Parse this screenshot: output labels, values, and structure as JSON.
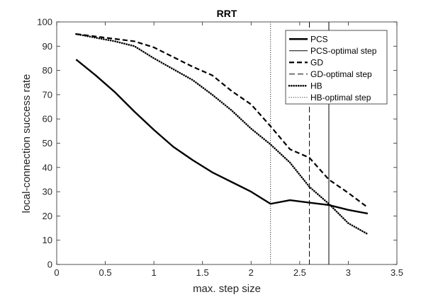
{
  "chart_data": {
    "type": "line",
    "title": "RRT",
    "xlabel": "max. step size",
    "ylabel": "local-connection success rate",
    "xlim": [
      0,
      3.5
    ],
    "ylim": [
      0,
      100
    ],
    "xticks": [
      0,
      0.5,
      1,
      1.5,
      2,
      2.5,
      3,
      3.5
    ],
    "yticks": [
      0,
      10,
      20,
      30,
      40,
      50,
      60,
      70,
      80,
      90,
      100
    ],
    "xtick_labels": [
      "0",
      "0.5",
      "1",
      "1.5",
      "2",
      "2.5",
      "3",
      "3.5"
    ],
    "ytick_labels": [
      "0",
      "10",
      "20",
      "30",
      "40",
      "50",
      "60",
      "70",
      "80",
      "90",
      "100"
    ],
    "grid": false,
    "legend_position": "top-right",
    "series": [
      {
        "name": "PCS",
        "style": "solid-thick",
        "x": [
          0.2,
          0.4,
          0.6,
          0.8,
          1.0,
          1.2,
          1.4,
          1.6,
          1.8,
          2.0,
          2.2,
          2.4,
          2.6,
          2.8,
          3.0,
          3.2
        ],
        "y": [
          84.5,
          78,
          71,
          63,
          55.5,
          48.5,
          43,
          38,
          34,
          30,
          25,
          26.5,
          25.5,
          24.5,
          22.5,
          21
        ]
      },
      {
        "name": "GD",
        "style": "dashed",
        "x": [
          0.2,
          0.4,
          0.6,
          0.8,
          1.0,
          1.2,
          1.4,
          1.6,
          1.8,
          2.0,
          2.2,
          2.4,
          2.6,
          2.8,
          3.0,
          3.2
        ],
        "y": [
          95,
          94,
          93,
          92,
          89.5,
          85.5,
          81.5,
          78,
          71.5,
          66,
          57,
          47.5,
          44,
          35,
          29.5,
          23.5
        ]
      },
      {
        "name": "HB",
        "style": "dotted",
        "x": [
          0.2,
          0.4,
          0.6,
          0.8,
          1.0,
          1.2,
          1.4,
          1.6,
          1.8,
          2.0,
          2.2,
          2.4,
          2.6,
          2.8,
          3.0,
          3.2
        ],
        "y": [
          95,
          93.5,
          92,
          90,
          85,
          80.5,
          76,
          70,
          63.5,
          56,
          49.5,
          42,
          32,
          25,
          17,
          12.5
        ]
      }
    ],
    "reference_lines": [
      {
        "name": "PCS-optimal step",
        "x": 2.8,
        "style": "solid-thin"
      },
      {
        "name": "GD-optimal step",
        "x": 2.6,
        "style": "dashed-thin"
      },
      {
        "name": "HB-optimal step",
        "x": 2.2,
        "style": "dotted-thin"
      }
    ]
  }
}
